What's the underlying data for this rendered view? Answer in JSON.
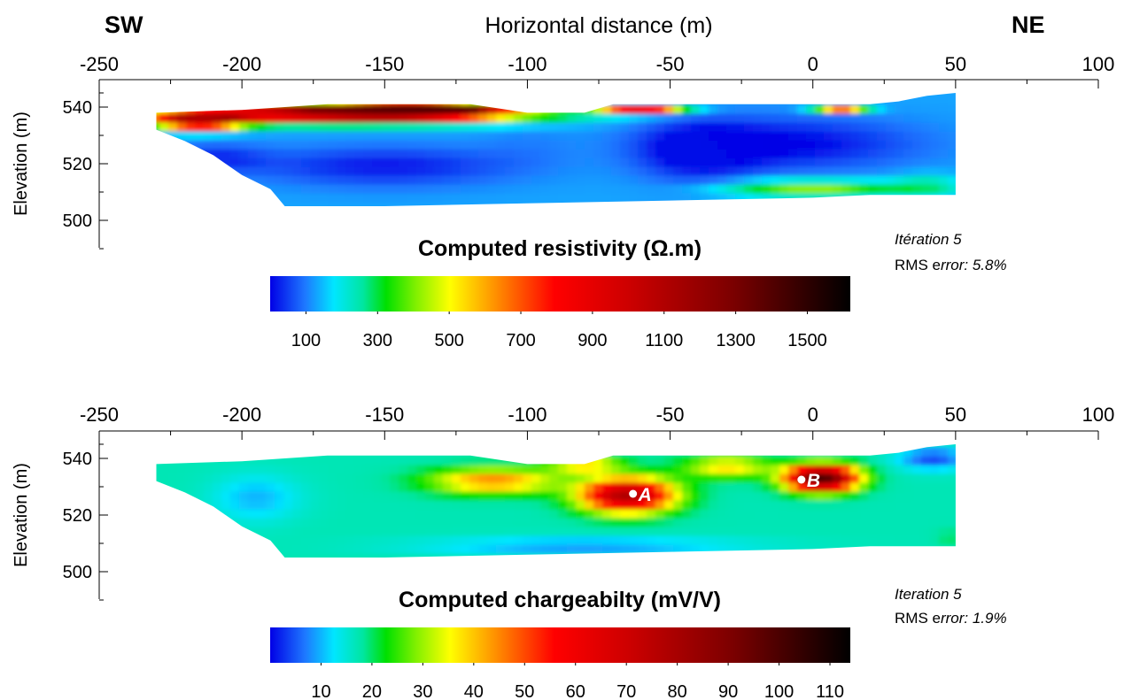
{
  "header": {
    "left_direction": "SW",
    "right_direction": "NE",
    "xlabel": "Horizontal distance (m)"
  },
  "chart_data": [
    {
      "type": "heatmap",
      "title": "Computed resistivity (Ω.m)",
      "xlabel": "Horizontal distance (m)",
      "ylabel": "Elevation (m)",
      "xlim": [
        -250,
        100
      ],
      "ylim": [
        490,
        550
      ],
      "x_ticks": [
        "-250",
        "-200",
        "-150",
        "-100",
        "-50",
        "0",
        "50",
        "100"
      ],
      "y_ticks": [
        "540",
        "520",
        "500"
      ],
      "iteration_label": "Itération 5",
      "rms_prefix": "RMS e",
      "rms_suffix": "rror: 5.8%",
      "colorbar": {
        "range": [
          0,
          1620
        ],
        "ticks": [
          "100",
          "300",
          "500",
          "700",
          "900",
          "1100",
          "1300",
          "1500"
        ],
        "tick_values": [
          100,
          300,
          500,
          700,
          900,
          1100,
          1300,
          1500
        ]
      },
      "section_top": [
        [
          -230,
          538
        ],
        [
          -200,
          539
        ],
        [
          -170,
          541
        ],
        [
          -140,
          541
        ],
        [
          -120,
          541
        ],
        [
          -100,
          538
        ],
        [
          -80,
          538
        ],
        [
          -70,
          541
        ],
        [
          -40,
          541
        ],
        [
          -20,
          541
        ],
        [
          0,
          541
        ],
        [
          20,
          541
        ],
        [
          30,
          542
        ],
        [
          40,
          544
        ],
        [
          50,
          545
        ]
      ],
      "section_bottom": [
        [
          -230,
          532
        ],
        [
          -220,
          528
        ],
        [
          -210,
          523
        ],
        [
          -200,
          516
        ],
        [
          -190,
          511
        ],
        [
          -185,
          505
        ],
        [
          -150,
          505
        ],
        [
          -100,
          506
        ],
        [
          -50,
          507
        ],
        [
          0,
          508
        ],
        [
          20,
          509
        ],
        [
          50,
          509
        ]
      ],
      "anomalies": [
        {
          "x": -165,
          "y": 538,
          "value": 1250,
          "rx": 60,
          "ry": 3.5
        },
        {
          "x": -140,
          "y": 539.5,
          "value": 1500,
          "rx": 25,
          "ry": 2.5
        },
        {
          "x": -215,
          "y": 535,
          "value": 1050,
          "rx": 15,
          "ry": 3
        },
        {
          "x": -60,
          "y": 539.5,
          "value": 900,
          "rx": 14,
          "ry": 1.5
        },
        {
          "x": 10,
          "y": 540,
          "value": 1000,
          "rx": 9,
          "ry": 1.2
        },
        {
          "x": -10,
          "y": 527,
          "value": 0,
          "rx": 45,
          "ry": 9
        },
        {
          "x": -40,
          "y": 524,
          "value": 10,
          "rx": 20,
          "ry": 11
        },
        {
          "x": -150,
          "y": 519,
          "value": 20,
          "rx": 45,
          "ry": 7
        },
        {
          "x": -210,
          "y": 522,
          "value": 40,
          "rx": 18,
          "ry": 5
        },
        {
          "x": -100,
          "y": 527,
          "value": 110,
          "rx": 16,
          "ry": 8
        },
        {
          "x": 0,
          "y": 511,
          "value": 430,
          "rx": 30,
          "ry": 3
        },
        {
          "x": 40,
          "y": 512,
          "value": 260,
          "rx": 12,
          "ry": 4
        }
      ],
      "background_value": 130
    },
    {
      "type": "heatmap",
      "title": "Computed chargeabilty (mV/V)",
      "xlabel": "",
      "ylabel": "Elevation (m)",
      "xlim": [
        -250,
        100
      ],
      "ylim": [
        490,
        550
      ],
      "x_ticks": [
        "-250",
        "-200",
        "-150",
        "-100",
        "-50",
        "0",
        "50",
        "100"
      ],
      "y_ticks": [
        "540",
        "520",
        "500"
      ],
      "iteration_label": "Iteration 5",
      "rms_prefix": "RMS e",
      "rms_suffix": "rror: 1.9%",
      "colorbar": {
        "range": [
          0,
          114
        ],
        "ticks": [
          "10",
          "20",
          "30",
          "40",
          "50",
          "60",
          "70",
          "80",
          "90",
          "100",
          "110"
        ],
        "tick_values": [
          10,
          20,
          30,
          40,
          50,
          60,
          70,
          80,
          90,
          100,
          110
        ]
      },
      "section_top": [
        [
          -230,
          538
        ],
        [
          -200,
          539
        ],
        [
          -170,
          541
        ],
        [
          -140,
          541
        ],
        [
          -120,
          541
        ],
        [
          -100,
          538
        ],
        [
          -80,
          538
        ],
        [
          -70,
          541
        ],
        [
          -40,
          541
        ],
        [
          -20,
          541
        ],
        [
          0,
          541
        ],
        [
          20,
          541
        ],
        [
          30,
          542
        ],
        [
          40,
          544
        ],
        [
          50,
          545
        ]
      ],
      "section_bottom": [
        [
          -230,
          532
        ],
        [
          -220,
          528
        ],
        [
          -210,
          523
        ],
        [
          -200,
          516
        ],
        [
          -190,
          511
        ],
        [
          -185,
          505
        ],
        [
          -150,
          505
        ],
        [
          -100,
          506
        ],
        [
          -50,
          507
        ],
        [
          0,
          508
        ],
        [
          20,
          509
        ],
        [
          50,
          509
        ]
      ],
      "anomalies": [
        {
          "x": -65,
          "y": 527,
          "value": 78,
          "rx": 16,
          "ry": 6
        },
        {
          "x": 3,
          "y": 533,
          "value": 100,
          "rx": 12,
          "ry": 4.5
        },
        {
          "x": -112,
          "y": 532,
          "value": 45,
          "rx": 22,
          "ry": 4.5
        },
        {
          "x": -80,
          "y": 538,
          "value": 40,
          "rx": 12,
          "ry": 3
        },
        {
          "x": -30,
          "y": 537,
          "value": 38,
          "rx": 15,
          "ry": 4
        },
        {
          "x": -195,
          "y": 526,
          "value": 10,
          "rx": 15,
          "ry": 8
        },
        {
          "x": -80,
          "y": 509,
          "value": 8,
          "rx": 55,
          "ry": 3
        },
        {
          "x": 42,
          "y": 540,
          "value": 4,
          "rx": 12,
          "ry": 4
        },
        {
          "x": 48,
          "y": 512,
          "value": 20,
          "rx": 5,
          "ry": 3
        }
      ],
      "background_value": 17,
      "markers": [
        {
          "label": "A",
          "x": -63,
          "y": 527.5
        },
        {
          "label": "B",
          "x": -4,
          "y": 532.5
        }
      ]
    }
  ]
}
